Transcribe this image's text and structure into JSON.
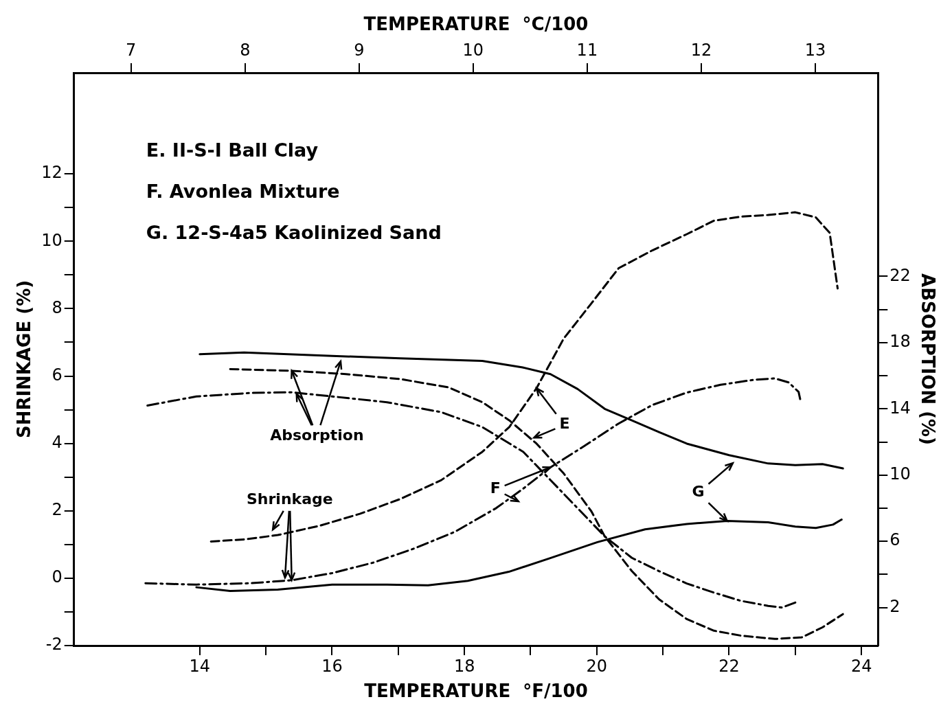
{
  "chart_data": {
    "type": "line",
    "xlabel": "TEMPERATURE  °F/100",
    "x2label": "TEMPERATURE  °C/100",
    "ylabel": "SHRINKAGE (%)",
    "y2label": "ABSORPTION (%)",
    "xlim": [
      12.1,
      24.25
    ],
    "xticks": [
      14,
      {
        "value": 15,
        "label": null
      },
      16,
      {
        "value": 17,
        "label": null
      },
      18,
      {
        "value": 19,
        "label": null
      },
      20,
      {
        "value": 21,
        "label": null
      },
      22,
      {
        "value": 23,
        "label": null
      },
      24
    ],
    "x2lim": [
      6.5,
      13.55
    ],
    "x2ticks": [
      7,
      8,
      9,
      10,
      11,
      12,
      13
    ],
    "ylim": [
      -2,
      15
    ],
    "yticks": [
      -2,
      {
        "value": -1,
        "label": null
      },
      0,
      {
        "value": 1,
        "label": null
      },
      2,
      {
        "value": 3,
        "label": null
      },
      4,
      {
        "value": 5,
        "label": null
      },
      6,
      {
        "value": 7,
        "label": null
      },
      8,
      {
        "value": 9,
        "label": null
      },
      10,
      {
        "value": 11,
        "label": null
      },
      12
    ],
    "y2lim": [
      -0.3,
      34.3
    ],
    "y2ticks": [
      2,
      {
        "value": 4,
        "label": null
      },
      6,
      {
        "value": 8,
        "label": null
      },
      10,
      {
        "value": 12,
        "label": null
      },
      14,
      {
        "value": 16,
        "label": null
      },
      18,
      {
        "value": 20,
        "label": null
      },
      22
    ],
    "grid": false,
    "legend": false,
    "marker": "none",
    "series": [
      {
        "color": "#000000",
        "line_style": "solid",
        "axis": "y2",
        "x": [
          14.0,
          14.67,
          16.0,
          17.03,
          18.27,
          18.88,
          19.3,
          19.71,
          20.12,
          20.53,
          20.94,
          21.36,
          22.0,
          22.59,
          23.0,
          23.41,
          23.72
        ],
        "values": [
          17.3,
          17.4,
          17.2,
          17.05,
          16.9,
          16.5,
          16.1,
          15.2,
          14.0,
          13.3,
          12.6,
          11.9,
          11.2,
          10.7,
          10.6,
          10.66,
          10.4
        ]
      },
      {
        "color": "#000000",
        "line_style": "solid",
        "axis": "y",
        "x": [
          13.95,
          14.46,
          15.18,
          16.0,
          16.83,
          17.45,
          18.05,
          18.67,
          19.29,
          20.01,
          20.73,
          21.36,
          21.97,
          22.59,
          23.0,
          23.31,
          23.57,
          23.7
        ],
        "values": [
          -0.27,
          -0.38,
          -0.34,
          -0.19,
          -0.19,
          -0.21,
          -0.08,
          0.19,
          0.59,
          1.07,
          1.45,
          1.61,
          1.7,
          1.66,
          1.53,
          1.49,
          1.59,
          1.74
        ]
      },
      {
        "color": "#000000",
        "line_style": "dashed",
        "axis": "y2",
        "x": [
          14.46,
          15.39,
          16.21,
          17.03,
          17.76,
          18.27,
          18.68,
          19.09,
          19.5,
          19.92,
          20.12,
          20.53,
          20.94,
          21.36,
          21.77,
          22.18,
          22.69,
          23.1,
          23.41,
          23.72
        ],
        "values": [
          16.4,
          16.3,
          16.1,
          15.8,
          15.3,
          14.4,
          13.3,
          11.9,
          10.1,
          7.8,
          6.3,
          4.2,
          2.5,
          1.3,
          0.6,
          0.3,
          0.1,
          0.2,
          0.8,
          1.6
        ]
      },
      {
        "color": "#000000",
        "line_style": "dashed",
        "axis": "y",
        "x": [
          14.17,
          14.67,
          15.18,
          15.8,
          16.42,
          17.03,
          17.65,
          18.27,
          18.68,
          19.09,
          19.5,
          19.92,
          20.33,
          20.84,
          21.36,
          21.77,
          22.18,
          22.59,
          23.0,
          23.31,
          23.52,
          23.64
        ],
        "values": [
          1.09,
          1.15,
          1.28,
          1.55,
          1.91,
          2.35,
          2.91,
          3.75,
          4.49,
          5.64,
          7.11,
          8.16,
          9.2,
          9.73,
          10.21,
          10.61,
          10.73,
          10.78,
          10.86,
          10.71,
          10.25,
          8.6
        ]
      },
      {
        "color": "#000000",
        "line_style": "dashdot",
        "axis": "y2",
        "x": [
          13.21,
          13.95,
          14.77,
          15.39,
          16.0,
          16.83,
          17.65,
          18.27,
          18.89,
          19.3,
          19.71,
          20.12,
          20.53,
          20.94,
          21.36,
          21.77,
          22.18,
          22.59,
          22.8,
          23.0
        ],
        "values": [
          14.2,
          14.75,
          14.96,
          15.0,
          14.75,
          14.4,
          13.8,
          12.9,
          11.4,
          9.7,
          8.0,
          6.3,
          5.0,
          4.2,
          3.45,
          2.9,
          2.4,
          2.1,
          2.0,
          2.3
        ]
      },
      {
        "color": "#000000",
        "line_style": "dashdot",
        "axis": "y",
        "x": [
          13.18,
          13.95,
          14.77,
          15.39,
          16.0,
          16.62,
          17.24,
          17.86,
          18.48,
          18.89,
          19.3,
          19.81,
          20.33,
          20.84,
          21.36,
          21.87,
          22.38,
          22.69,
          22.9,
          23.05,
          23.08
        ],
        "values": [
          -0.15,
          -0.19,
          -0.15,
          -0.06,
          0.15,
          0.46,
          0.88,
          1.38,
          2.08,
          2.66,
          3.29,
          3.92,
          4.59,
          5.14,
          5.51,
          5.74,
          5.89,
          5.93,
          5.81,
          5.53,
          5.26
        ]
      }
    ],
    "annotations": [
      "E. II-S-I Ball Clay",
      "F. Avonlea Mixture",
      "G. 12-S-4a5 Kaolinized Sand",
      {
        "text": "Absorption",
        "x": 15.39,
        "y": 6.16
      },
      {
        "text": "Shrinkage",
        "x": 15.39,
        "y": -0.06
      },
      {
        "text": "E",
        "x": 19.09,
        "y": 5.64
      },
      {
        "text": "F",
        "x": 19.3,
        "y": 3.29
      },
      {
        "text": "G",
        "x": 21.97,
        "y": 1.7
      }
    ]
  }
}
